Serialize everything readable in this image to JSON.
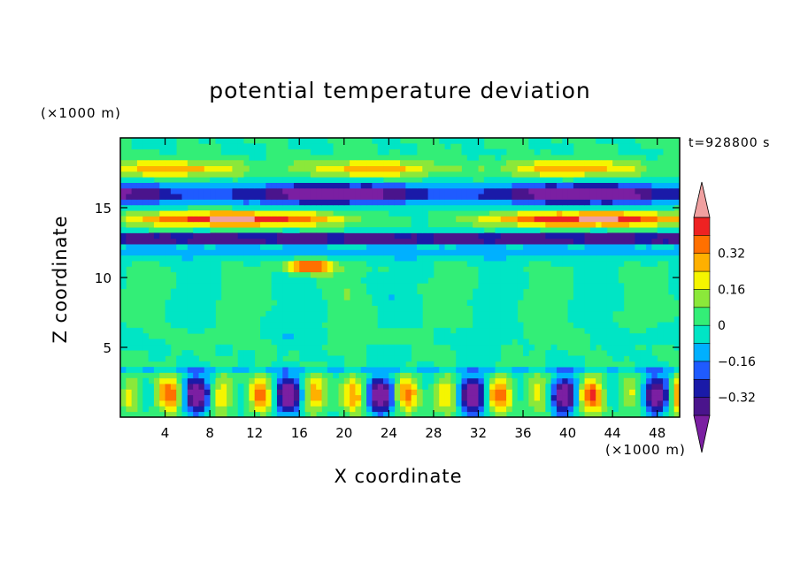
{
  "chart_data": {
    "type": "heatmap",
    "title": "potential temperature deviation",
    "xlabel": "X coordinate",
    "ylabel": "Z coordinate",
    "x_unit": "(×1000 m)",
    "y_unit": "(×1000 m)",
    "time_label": "t=928800 s",
    "xlim": [
      0,
      50
    ],
    "ylim": [
      0,
      20
    ],
    "x_ticks": [
      4,
      8,
      12,
      16,
      20,
      24,
      28,
      32,
      36,
      40,
      44,
      48
    ],
    "y_ticks": [
      5,
      10,
      15
    ],
    "colorbar": {
      "levels": [
        -0.48,
        -0.4,
        -0.32,
        -0.24,
        -0.16,
        -0.08,
        0,
        0.08,
        0.16,
        0.24,
        0.32,
        0.4,
        0.48
      ],
      "colors": [
        "#7b1fa2",
        "#4a148c",
        "#1a1aa8",
        "#1f5bff",
        "#00b0ff",
        "#00e5c5",
        "#33ee77",
        "#8be83a",
        "#f5f500",
        "#ffb000",
        "#ff7000",
        "#ee2222",
        "#f0a0a0"
      ],
      "labels": [
        "−0.32",
        "−0.16",
        "0",
        "0.16",
        "0.32"
      ],
      "label_values": [
        -0.32,
        -0.16,
        0,
        0.16,
        0.32
      ]
    }
  }
}
